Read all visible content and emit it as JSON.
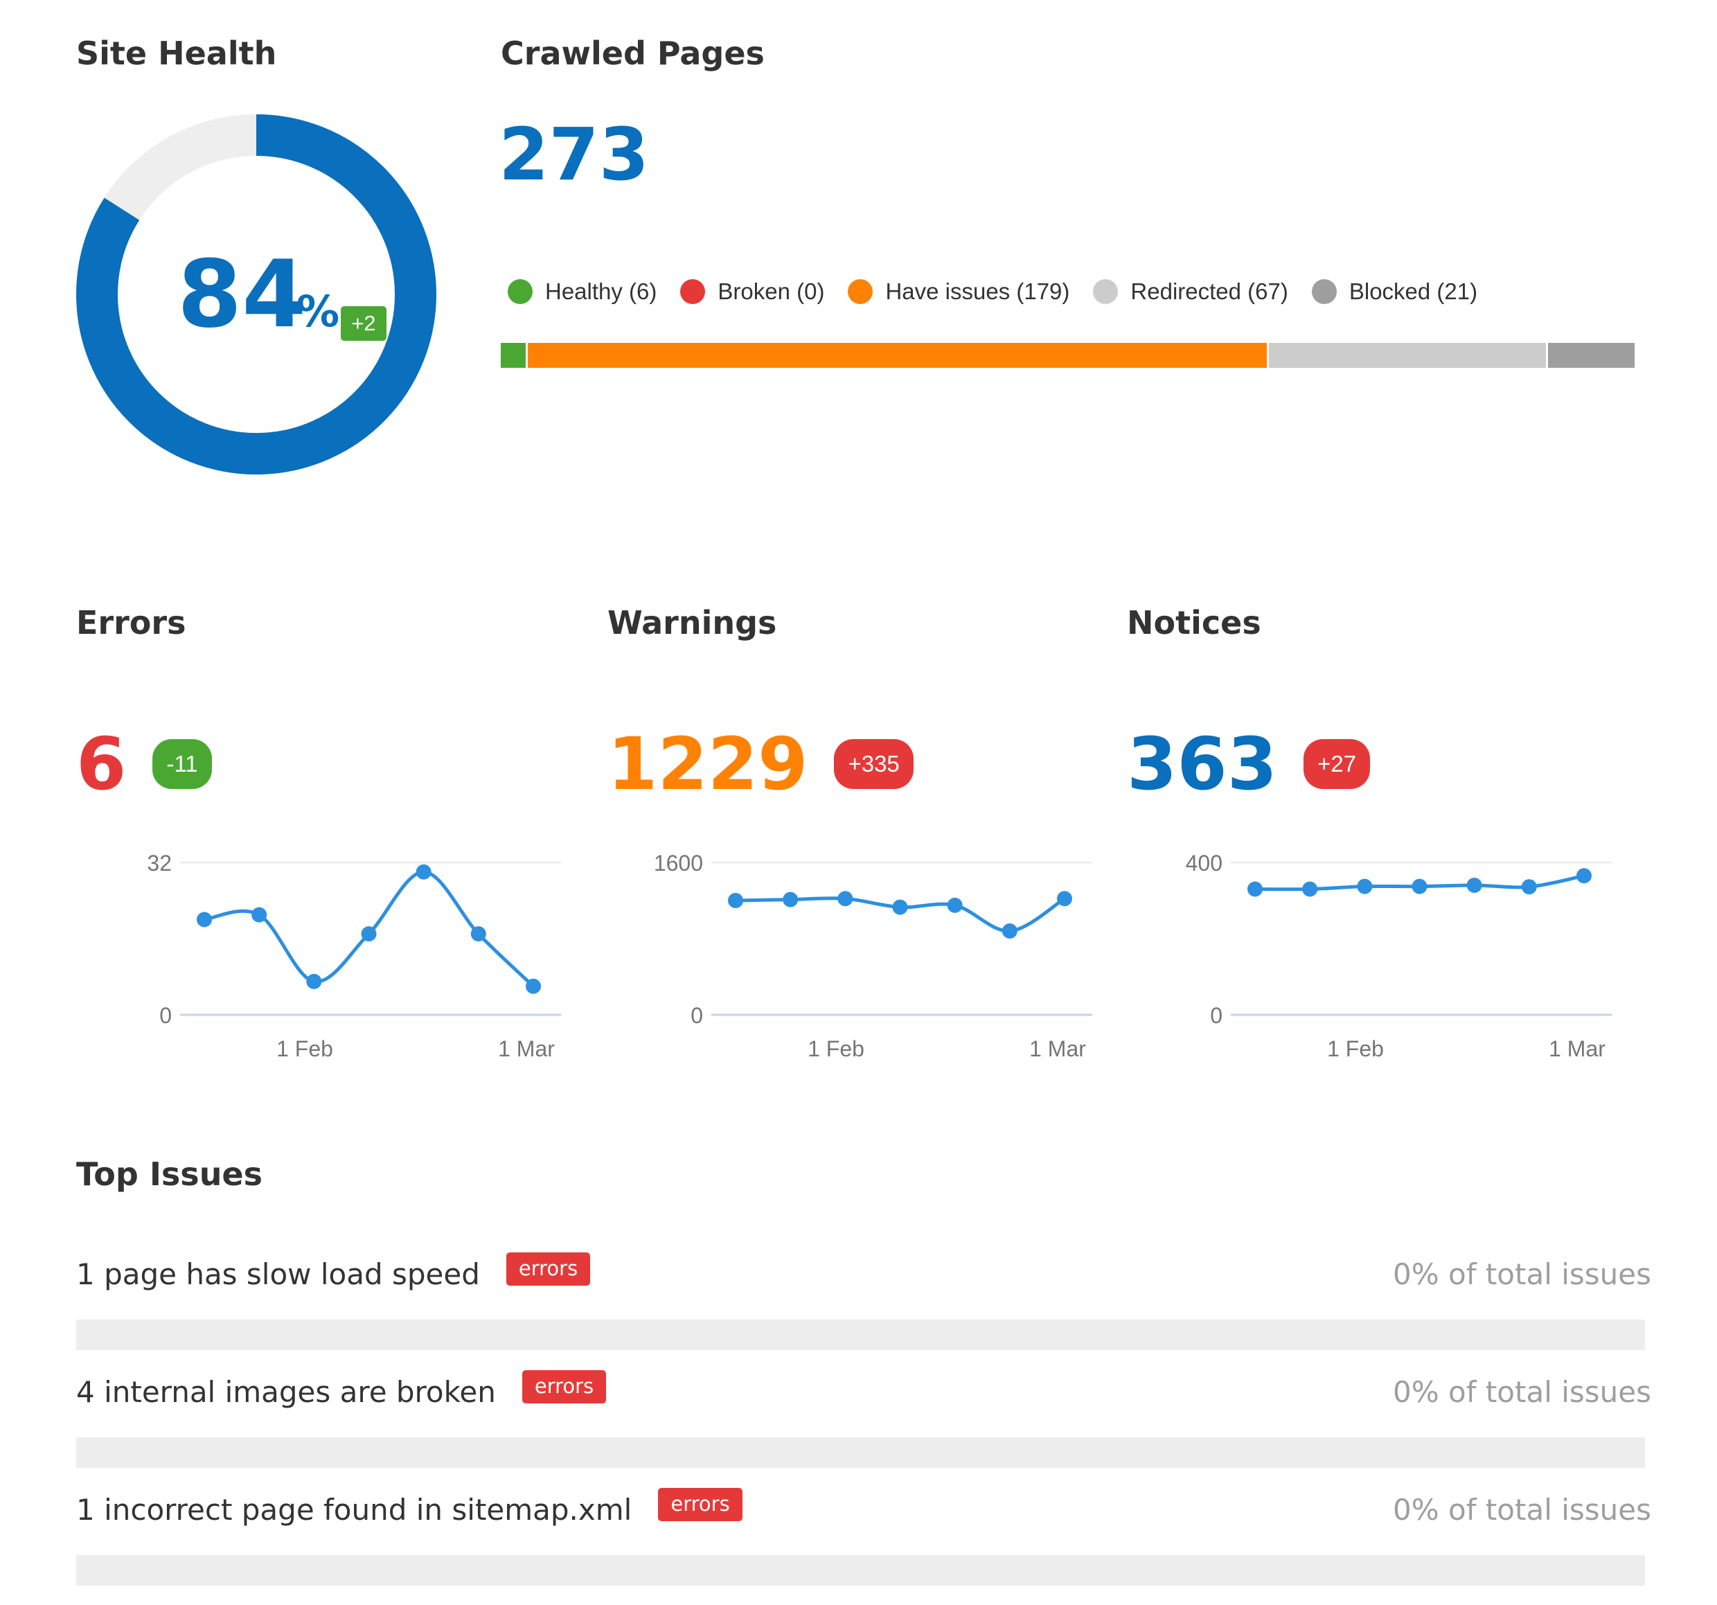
{
  "site_health": {
    "title": "Site Health",
    "value": "84",
    "unit": "%",
    "fraction": 0.84,
    "delta": "+2",
    "colors": {
      "ring": "#0a6fbd",
      "track": "#eeeeee",
      "delta": "#4aa832"
    }
  },
  "crawled_pages": {
    "title": "Crawled Pages",
    "count": "273",
    "legend": [
      {
        "label": "Healthy (6)",
        "color": "#4aa832",
        "value": 6
      },
      {
        "label": "Broken (0)",
        "color": "#e53939",
        "value": 0
      },
      {
        "label": "Have issues (179)",
        "color": "#ff8205",
        "value": 179
      },
      {
        "label": "Redirected (67)",
        "color": "#cccccc",
        "value": 67
      },
      {
        "label": "Blocked (21)",
        "color": "#9e9e9e",
        "value": 21
      }
    ]
  },
  "metrics": [
    {
      "title": "Errors",
      "value": "6",
      "value_color": "#e53939",
      "delta": "-11",
      "delta_color": "#4aa832",
      "chart_data": {
        "type": "line",
        "x_ticks": [
          "1 Feb",
          "1 Mar"
        ],
        "y_ticks": [
          "32",
          "0"
        ],
        "ylim": [
          0,
          32
        ],
        "values": [
          20,
          21,
          7,
          17,
          30,
          17,
          6
        ],
        "color": "#2d8fe0"
      }
    },
    {
      "title": "Warnings",
      "value": "1229",
      "value_color": "#ff8205",
      "delta": "+335",
      "delta_color": "#e53939",
      "chart_data": {
        "type": "line",
        "x_ticks": [
          "1 Feb",
          "1 Mar"
        ],
        "y_ticks": [
          "1600",
          "0"
        ],
        "ylim": [
          0,
          1600
        ],
        "values": [
          1200,
          1210,
          1220,
          1130,
          1150,
          880,
          1220
        ],
        "color": "#2d8fe0"
      }
    },
    {
      "title": "Notices",
      "value": "363",
      "value_color": "#0a6fbd",
      "delta": "+27",
      "delta_color": "#e53939",
      "chart_data": {
        "type": "line",
        "x_ticks": [
          "1 Feb",
          "1 Mar"
        ],
        "y_ticks": [
          "400",
          "0"
        ],
        "ylim": [
          0,
          400
        ],
        "values": [
          330,
          330,
          337,
          337,
          340,
          336,
          365
        ],
        "color": "#2d8fe0"
      }
    }
  ],
  "top_issues": {
    "title": "Top Issues",
    "items": [
      {
        "text": "1 page has slow load speed",
        "tag": "errors",
        "share": "0% of total issues"
      },
      {
        "text": "4 internal images are broken",
        "tag": "errors",
        "share": "0% of total issues"
      },
      {
        "text": "1 incorrect page found in sitemap.xml",
        "tag": "errors",
        "share": "0% of total issues"
      }
    ]
  }
}
